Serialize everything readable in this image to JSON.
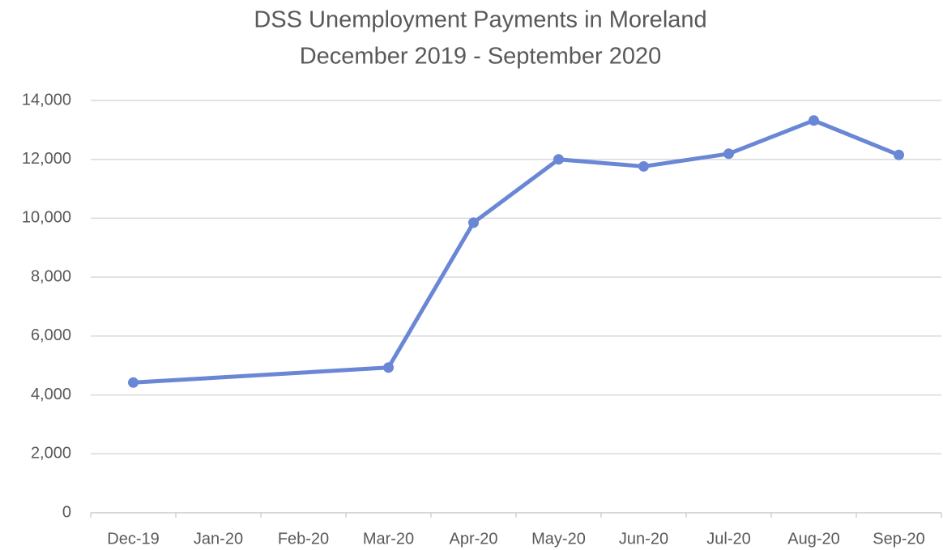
{
  "chart_data": {
    "type": "line",
    "title": "DSS Unemployment Payments in Moreland",
    "subtitle": "December 2019 - September 2020",
    "categories": [
      "Dec-19",
      "Jan-20",
      "Feb-20",
      "Mar-20",
      "Apr-20",
      "May-20",
      "Jun-20",
      "Jul-20",
      "Aug-20",
      "Sep-20"
    ],
    "series": [
      {
        "name": "Unemployment Payments",
        "color": "#6a87d6",
        "values": [
          4420,
          null,
          null,
          4930,
          9850,
          12000,
          11760,
          12190,
          13320,
          12150
        ]
      }
    ],
    "span_gaps": true,
    "ylim": [
      0,
      14000
    ],
    "yticks": [
      0,
      {
        "value": 2000,
        "label": "2,000"
      },
      {
        "value": 4000,
        "label": "4,000"
      },
      {
        "value": 6000,
        "label": "6,000"
      },
      {
        "value": 8000,
        "label": "8,000"
      },
      {
        "value": 10000,
        "label": "10,000"
      },
      {
        "value": 12000,
        "label": "12,000"
      },
      {
        "value": 14000,
        "label": "14,000"
      }
    ],
    "grid": true
  }
}
